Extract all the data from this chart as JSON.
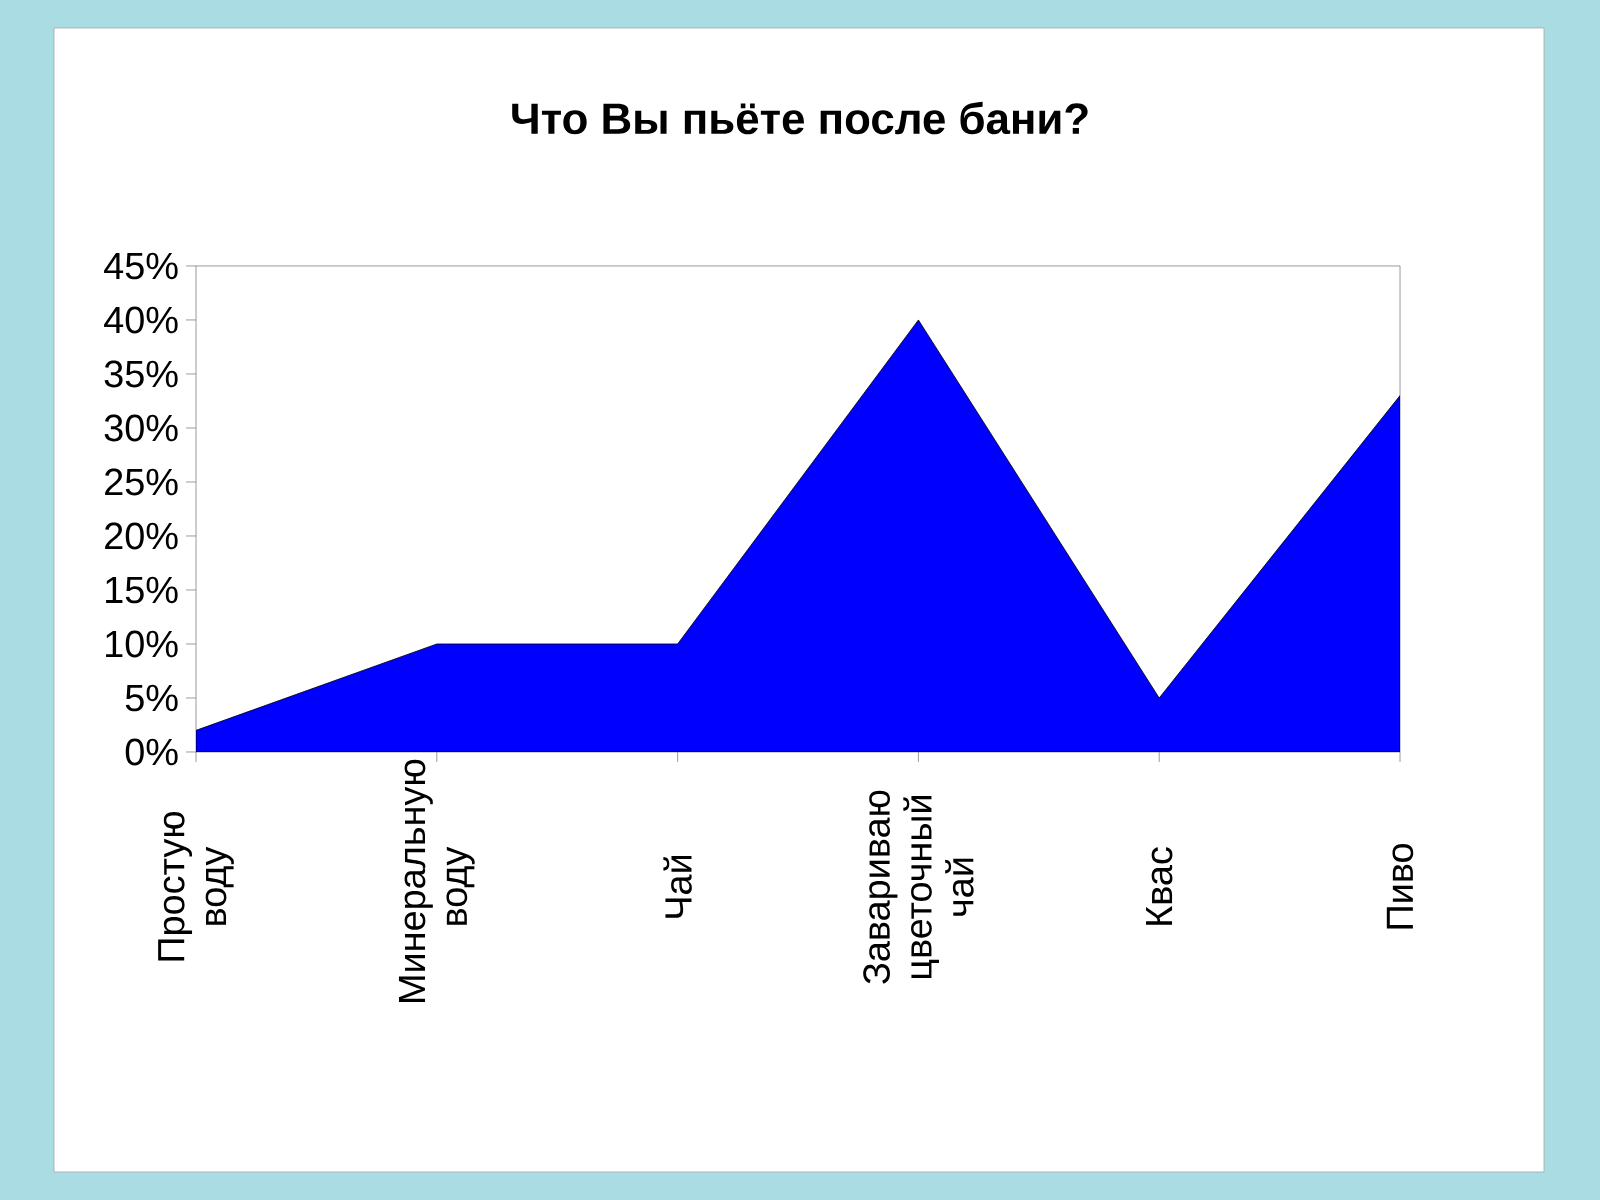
{
  "chart_data": {
    "type": "area",
    "title": "Что Вы пьёте после бани?",
    "categories": [
      "Простую воду",
      "Минеральную воду",
      "Чай",
      "Завариваю цветочный чай",
      "Квас",
      "Пиво"
    ],
    "values": [
      2,
      10,
      10,
      40,
      5,
      33
    ],
    "color": "#0000ff",
    "ylim": [
      0,
      45
    ],
    "yticks": [
      {
        "value": 0,
        "label": "0%"
      },
      {
        "value": 5,
        "label": "5%"
      },
      {
        "value": 10,
        "label": "10%"
      },
      {
        "value": 15,
        "label": "15%"
      },
      {
        "value": 20,
        "label": "20%"
      },
      {
        "value": 25,
        "label": "25%"
      },
      {
        "value": 30,
        "label": "30%"
      },
      {
        "value": 35,
        "label": "35%"
      },
      {
        "value": 40,
        "label": "40%"
      },
      {
        "value": 45,
        "label": "45%"
      }
    ],
    "grid": false
  }
}
